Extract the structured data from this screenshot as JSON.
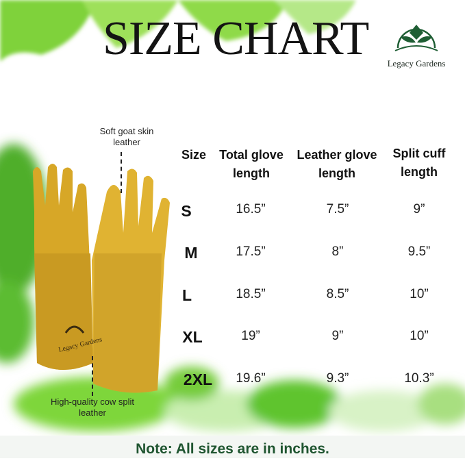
{
  "title": "SIZE CHART",
  "brand": {
    "name": "Legacy Gardens",
    "color": "#1f5e34"
  },
  "callouts": {
    "top": "Soft goat skin leather",
    "bottom": "High-quality cow split leather"
  },
  "glove_brand": "Legacy Gardens",
  "table": {
    "headers": [
      "Size",
      "Total glove length",
      "Leather glove length",
      "Split cuff length"
    ],
    "rows": [
      {
        "size": "S",
        "total": "16.5”",
        "leather": "7.5”",
        "cuff": "9”"
      },
      {
        "size": "M",
        "total": "17.5”",
        "leather": "8”",
        "cuff": "9.5”"
      },
      {
        "size": "L",
        "total": "18.5”",
        "leather": "8.5”",
        "cuff": "10”"
      },
      {
        "size": "XL",
        "total": "19”",
        "leather": "9”",
        "cuff": "10”"
      },
      {
        "size": "2XL",
        "total": "19.6”",
        "leather": "9.3”",
        "cuff": "10.3”"
      }
    ]
  },
  "note": "Note:  All sizes are in inches.",
  "colors": {
    "glove": "#d9a92a",
    "leaf": "#6fcf2a",
    "note_text": "#1f5530"
  }
}
